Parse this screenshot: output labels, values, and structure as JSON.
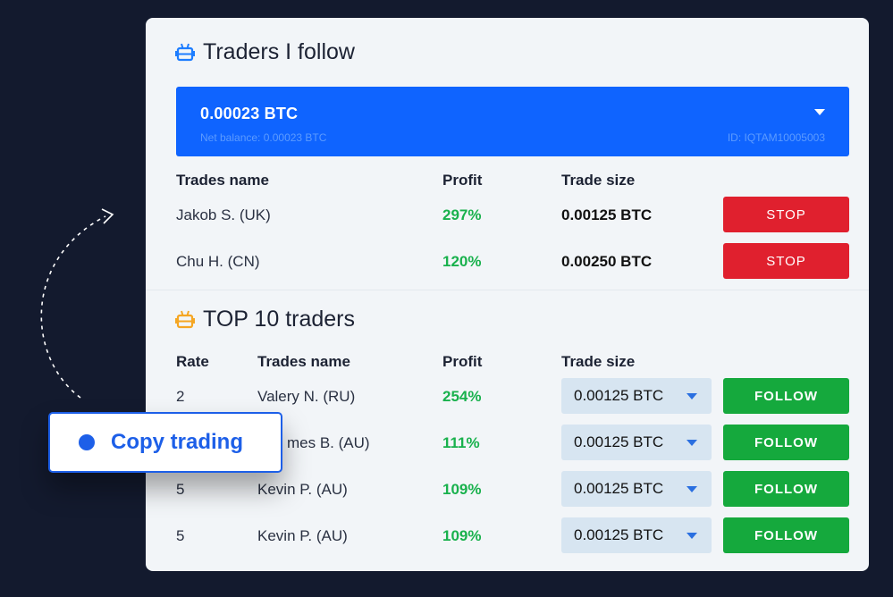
{
  "following": {
    "title": "Traders I follow",
    "icon": "robot-icon",
    "icon_color": "#1d7dff",
    "account": {
      "amount": "0.00023 BTC",
      "net_balance": "Net balance: 0.00023 BTC",
      "id": "ID: IQTAM10005003"
    },
    "headers": {
      "name": "Trades name",
      "profit": "Profit",
      "size": "Trade size"
    },
    "rows": [
      {
        "name": "Jakob S. (UK)",
        "profit": "297%",
        "size": "0.00125 BTC",
        "action": "STOP"
      },
      {
        "name": "Chu H. (CN)",
        "profit": "120%",
        "size": "0.00250 BTC",
        "action": "STOP"
      }
    ]
  },
  "top": {
    "title": "TOP 10 traders",
    "icon": "robot-icon",
    "icon_color": "#f5a623",
    "headers": {
      "rate": "Rate",
      "name": "Trades name",
      "profit": "Profit",
      "size": "Trade size"
    },
    "rows": [
      {
        "rate": "2",
        "name": "Valery N. (RU)",
        "profit": "254%",
        "size": "0.00125 BTC",
        "action": "FOLLOW"
      },
      {
        "rate": "",
        "name": "mes B. (AU)",
        "profit": "111%",
        "size": "0.00125 BTC",
        "action": "FOLLOW"
      },
      {
        "rate": "5",
        "name": "Kevin P. (AU)",
        "profit": "109%",
        "size": "0.00125 BTC",
        "action": "FOLLOW"
      },
      {
        "rate": "5",
        "name": "Kevin P. (AU)",
        "profit": "109%",
        "size": "0.00125 BTC",
        "action": "FOLLOW"
      }
    ]
  },
  "badge": {
    "label": "Copy trading"
  },
  "colors": {
    "background": "#131a2e",
    "accent": "#0f64ff",
    "profit": "#19b14d",
    "stop": "#e0202e",
    "follow": "#15a93d"
  }
}
